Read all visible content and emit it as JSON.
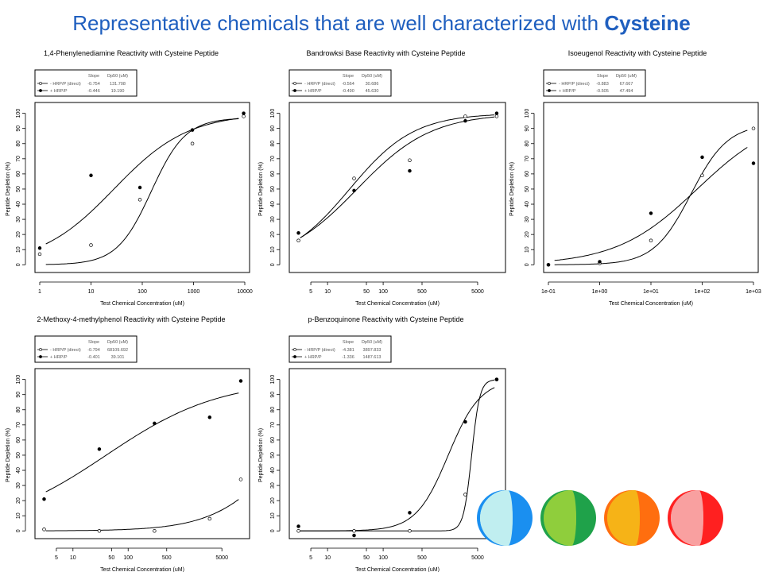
{
  "slide": {
    "title_prefix": "Representative chemicals that are well characterized with ",
    "title_bold": "Cysteine",
    "title_color": "#1f5fbf"
  },
  "legend_header": {
    "slope": "Slope",
    "dp50": "Dp50 (uM)"
  },
  "chart_data": [
    {
      "type": "scatter",
      "title": "1,4-Phenylenediamine Reactivity with Cysteine Peptide",
      "xlabel": "Test Chemical Concentration (uM)",
      "ylabel": "Peptide Depletion (%)",
      "xscale": "log",
      "xlim": [
        1,
        10000
      ],
      "ylim": [
        0,
        100
      ],
      "xticks": [
        1,
        10,
        100,
        1000,
        10000
      ],
      "xtick_labels": [
        "1",
        "10",
        "100",
        "1000",
        "10000"
      ],
      "yticks": [
        0,
        10,
        20,
        30,
        40,
        50,
        60,
        70,
        80,
        90,
        100
      ],
      "legend_position": "top-left",
      "series": [
        {
          "name": "- HRP/P (direct)",
          "slope": "-0.754",
          "dp50": "131.708",
          "marker": "open",
          "x": [
            1,
            10,
            90,
            950,
            9500
          ],
          "y": [
            7,
            13,
            43,
            80,
            98
          ]
        },
        {
          "name": "+ HRP/P",
          "slope": "-0.446",
          "dp50": "19.190",
          "marker": "filled",
          "x": [
            1,
            10,
            90,
            950,
            9500
          ],
          "y": [
            11,
            59,
            51,
            89,
            100
          ]
        }
      ]
    },
    {
      "type": "scatter",
      "title": "Bandrowksi Base Reactivity with Cysteine Peptide",
      "xlabel": "Test Chemical Concentration (uM)",
      "ylabel": "Peptide Depletion (%)",
      "xscale": "log",
      "xlim": [
        2.5,
        13000
      ],
      "ylim": [
        0,
        100
      ],
      "xticks": [
        5,
        10,
        50,
        100,
        500,
        5000
      ],
      "xtick_labels": [
        "5",
        "10",
        "50",
        "100",
        "500",
        "5000"
      ],
      "yticks": [
        0,
        10,
        20,
        30,
        40,
        50,
        60,
        70,
        80,
        90,
        100
      ],
      "legend_position": "top-left",
      "series": [
        {
          "name": "- HRP/P (direct)",
          "slope": "-0.564",
          "dp50": "30.686",
          "marker": "open",
          "x": [
            3,
            30,
            300,
            3000,
            11000
          ],
          "y": [
            16,
            57,
            69,
            98,
            98
          ]
        },
        {
          "name": "+ HRP/P",
          "slope": "-0.490",
          "dp50": "45.630",
          "marker": "filled",
          "x": [
            3,
            30,
            300,
            3000,
            11000
          ],
          "y": [
            21,
            49,
            62,
            95,
            100
          ]
        }
      ]
    },
    {
      "type": "scatter",
      "title": "Isoeugenol Reactivity with Cysteine Peptide",
      "xlabel": "Test Chemical Concentration (uM)",
      "ylabel": "Peptide Depletion (%)",
      "xscale": "log",
      "xlim": [
        0.1,
        1000
      ],
      "ylim": [
        0,
        100
      ],
      "xticks": [
        0.1,
        1,
        10,
        100,
        1000
      ],
      "xtick_labels": [
        "1e-01",
        "1e+00",
        "1e+01",
        "1e+02",
        "1e+03"
      ],
      "yticks": [
        0,
        10,
        20,
        30,
        40,
        50,
        60,
        70,
        80,
        90,
        100
      ],
      "legend_position": "top-left",
      "series": [
        {
          "name": "- HRP/P (direct)",
          "slope": "-0.883",
          "dp50": "67.667",
          "marker": "open",
          "x": [
            0.1,
            1,
            10,
            100,
            1000
          ],
          "y": [
            0,
            1,
            16,
            59,
            90
          ]
        },
        {
          "name": "+ HRP/P",
          "slope": "-0.505",
          "dp50": "47.494",
          "marker": "filled",
          "x": [
            0.1,
            1,
            10,
            100,
            1000
          ],
          "y": [
            0,
            2,
            34,
            71,
            67
          ]
        }
      ]
    },
    {
      "type": "scatter",
      "title": "2-Methoxy-4-methylphenol Reactivity with Cysteine Peptide",
      "xlabel": "Test Chemical Concentration (uM)",
      "ylabel": "Peptide Depletion (%)",
      "xscale": "log",
      "xlim": [
        2.5,
        13000
      ],
      "ylim": [
        0,
        100
      ],
      "xticks": [
        5,
        10,
        50,
        100,
        500,
        5000
      ],
      "xtick_labels": [
        "5",
        "10",
        "50",
        "100",
        "500",
        "5000"
      ],
      "yticks": [
        0,
        10,
        20,
        30,
        40,
        50,
        60,
        70,
        80,
        90,
        100
      ],
      "legend_position": "top-left",
      "series": [
        {
          "name": "- HRP/P (direct)",
          "slope": "-0.794",
          "dp50": "68109.692",
          "marker": "open",
          "x": [
            3,
            30,
            300,
            3000,
            11000
          ],
          "y": [
            1,
            0,
            0,
            8,
            34
          ]
        },
        {
          "name": "+ HRP/P",
          "slope": "-0.401",
          "dp50": "39.101",
          "marker": "filled",
          "x": [
            3,
            30,
            300,
            3000,
            11000
          ],
          "y": [
            21,
            54,
            71,
            75,
            99
          ]
        }
      ]
    },
    {
      "type": "scatter",
      "title": "p-Benzoquinone Reactivity with Cysteine Peptide",
      "xlabel": "Test Chemical Concentration (uM)",
      "ylabel": "Peptide Depletion (%)",
      "xscale": "log",
      "xlim": [
        2.5,
        13000
      ],
      "ylim": [
        0,
        100
      ],
      "xticks": [
        5,
        10,
        50,
        100,
        500,
        5000
      ],
      "xtick_labels": [
        "5",
        "10",
        "50",
        "100",
        "500",
        "5000"
      ],
      "yticks": [
        0,
        10,
        20,
        30,
        40,
        50,
        60,
        70,
        80,
        90,
        100
      ],
      "legend_position": "top-left",
      "series": [
        {
          "name": "- HRP/P (direct)",
          "slope": "-4.381",
          "dp50": "3897.833",
          "marker": "open",
          "x": [
            3,
            30,
            300,
            3000,
            11000
          ],
          "y": [
            0,
            0,
            0,
            24,
            100
          ]
        },
        {
          "name": "+ HRP/P",
          "slope": "-1.336",
          "dp50": "1487.613",
          "marker": "filled",
          "x": [
            3,
            30,
            300,
            3000,
            11000
          ],
          "y": [
            3,
            -3,
            12,
            72,
            100
          ]
        }
      ]
    }
  ],
  "curves": [
    {
      "a": [
        {
          "top": 97,
          "ec50": 150,
          "h": 1.3
        },
        {
          "top": 100,
          "ec50": 28,
          "h": 0.6
        }
      ]
    },
    {
      "a": [
        {
          "top": 100,
          "ec50": 25,
          "h": 0.75
        },
        {
          "top": 100,
          "ec50": 34,
          "h": 0.65
        }
      ]
    },
    {
      "a": [
        {
          "top": 93,
          "ec50": 60,
          "h": 1.2
        },
        {
          "top": 100,
          "ec50": 80,
          "h": 0.55
        }
      ]
    },
    {
      "a": [
        {
          "top": 100,
          "ec50": 68000,
          "h": 0.7
        },
        {
          "top": 100,
          "ec50": 40,
          "h": 0.42
        }
      ]
    },
    {
      "a": [
        {
          "top": 100,
          "ec50": 3900,
          "h": 6
        },
        {
          "top": 100,
          "ec50": 1480,
          "h": 1.5
        }
      ]
    }
  ],
  "decor_circles": [
    {
      "left": "#c0eef0",
      "right": "#1a8ff0"
    },
    {
      "left": "#8fce3c",
      "right": "#1fa24a"
    },
    {
      "left": "#f6b317",
      "right": "#ff6e0f"
    },
    {
      "left": "#f9a0a0",
      "right": "#ff2020"
    }
  ]
}
